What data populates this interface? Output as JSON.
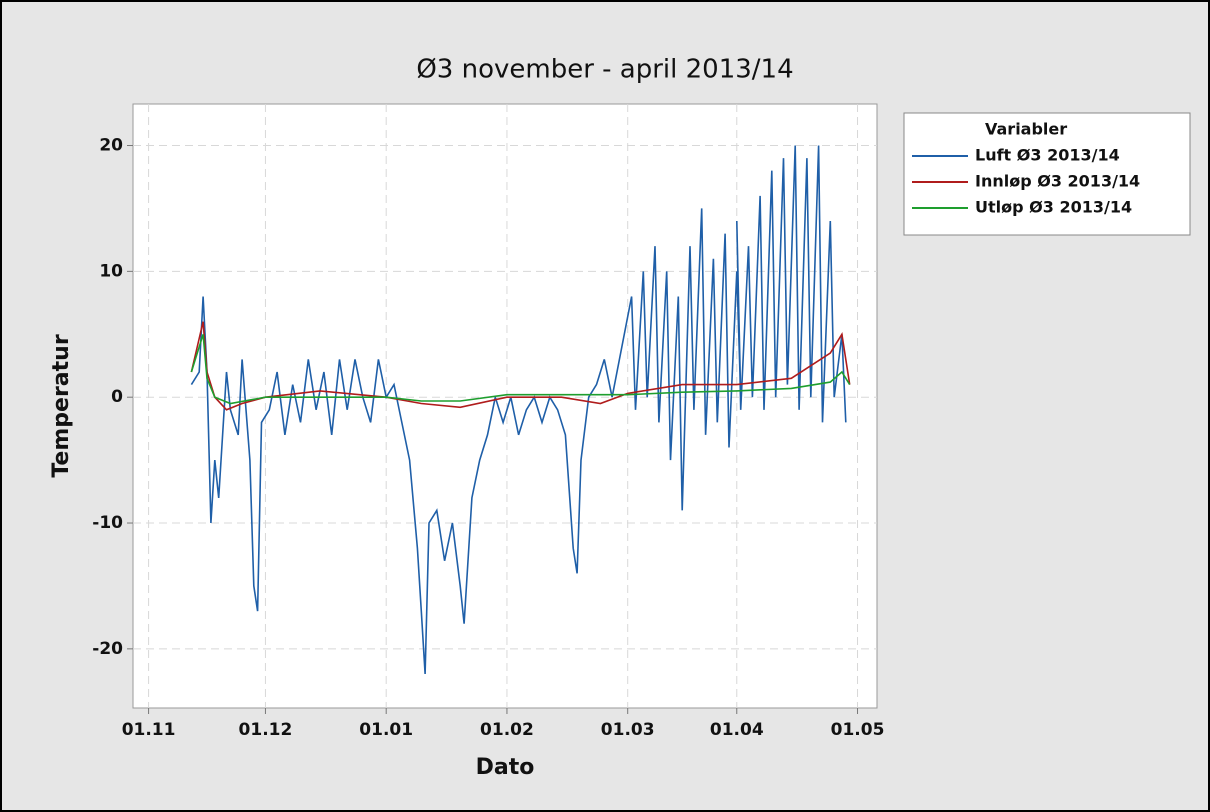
{
  "chart_data": {
    "type": "line",
    "title": "Ø3 november - april 2013/14",
    "x_label": "Dato",
    "y_label": "Temperatur",
    "legend_title": "Variabler",
    "legend": "right",
    "grid": true,
    "xlim": [
      "28.10",
      "06.05"
    ],
    "xticks": [
      "01.11",
      "01.12",
      "01.01",
      "01.02",
      "01.03",
      "01.04",
      "01.05"
    ],
    "ylim": [
      -24.7,
      23.3
    ],
    "yticks": [
      -20,
      -10,
      0,
      10,
      20
    ],
    "series": [
      {
        "name": "Luft Ø3 2013/14",
        "color": "#1f5fa8",
        "x": [
          "12.11",
          "14.11",
          "15.11",
          "16.11",
          "17.11",
          "18.11",
          "19.11",
          "21.11",
          "22.11",
          "24.11",
          "25.11",
          "27.11",
          "28.11",
          "29.11",
          "30.11",
          "02.12",
          "04.12",
          "06.12",
          "08.12",
          "10.12",
          "12.12",
          "14.12",
          "16.12",
          "18.12",
          "20.12",
          "22.12",
          "24.12",
          "26.12",
          "28.12",
          "30.12",
          "01.01",
          "03.01",
          "05.01",
          "07.01",
          "09.01",
          "10.01",
          "11.01",
          "12.01",
          "14.01",
          "16.01",
          "18.01",
          "20.01",
          "21.01",
          "23.01",
          "25.01",
          "27.01",
          "29.01",
          "31.01",
          "02.02",
          "04.02",
          "06.02",
          "08.02",
          "10.02",
          "12.02",
          "14.02",
          "16.02",
          "18.02",
          "19.02",
          "20.02",
          "22.02",
          "24.02",
          "26.02",
          "28.02",
          "02.03",
          "03.03",
          "05.03",
          "06.03",
          "08.03",
          "09.03",
          "11.03",
          "12.03",
          "14.03",
          "15.03",
          "17.03",
          "18.03",
          "20.03",
          "21.03",
          "23.03",
          "24.03",
          "26.03",
          "27.03",
          "29.03",
          "30.03",
          "01.04",
          "02.04",
          "04.04",
          "05.04",
          "07.04",
          "08.04",
          "10.04",
          "11.04",
          "13.04",
          "14.04",
          "16.04",
          "17.04",
          "19.04",
          "20.04",
          "22.04",
          "23.04",
          "25.04",
          "26.04",
          "28.04",
          "29.04"
        ],
        "values": [
          1,
          2,
          8,
          2,
          -10,
          -5,
          -8,
          2,
          -1,
          -3,
          3,
          -5,
          -15,
          -17,
          -2,
          -1,
          2,
          -3,
          1,
          -2,
          3,
          -1,
          2,
          -3,
          3,
          -1,
          3,
          0,
          -2,
          3,
          0,
          1,
          -2,
          -5,
          -12,
          -17,
          -22,
          -10,
          -9,
          -13,
          -10,
          -15,
          -18,
          -8,
          -5,
          -3,
          0,
          -2,
          0,
          -3,
          -1,
          0,
          -2,
          0,
          -1,
          -3,
          -12,
          -14,
          -5,
          0,
          1,
          3,
          0,
          8,
          -1,
          10,
          0,
          12,
          -2,
          10,
          -5,
          8,
          -9,
          12,
          -1,
          15,
          -3,
          11,
          -2,
          13,
          -4,
          10,
          0,
          14,
          -1,
          12,
          0,
          16,
          -1,
          18,
          0,
          19,
          1,
          20,
          -1,
          19,
          0,
          20,
          -2,
          14,
          0,
          5,
          -2
        ]
      },
      {
        "name": "Innløp Ø3 2013/14",
        "color": "#b01c1c",
        "x": [
          "12.11",
          "15.11",
          "16.11",
          "18.11",
          "21.11",
          "25.11",
          "01.12",
          "15.12",
          "01.01",
          "10.01",
          "20.01",
          "01.02",
          "15.02",
          "25.02",
          "01.03",
          "15.03",
          "01.04",
          "15.04",
          "20.04",
          "25.04",
          "28.04",
          "30.04"
        ],
        "values": [
          2,
          6,
          2,
          0,
          -1,
          -0.5,
          0,
          0.5,
          0,
          -0.5,
          -0.8,
          0,
          0,
          -0.5,
          0.3,
          1,
          1,
          1.5,
          2.5,
          3.5,
          5,
          1
        ]
      },
      {
        "name": "Utløp Ø3 2013/14",
        "color": "#1e9e2e",
        "x": [
          "12.11",
          "15.11",
          "16.11",
          "18.11",
          "22.11",
          "01.12",
          "15.12",
          "01.01",
          "10.01",
          "20.01",
          "01.02",
          "15.02",
          "01.03",
          "15.03",
          "01.04",
          "15.04",
          "25.04",
          "28.04",
          "30.04"
        ],
        "values": [
          2,
          5,
          1.5,
          0,
          -0.5,
          0,
          0,
          0,
          -0.3,
          -0.3,
          0.2,
          0.2,
          0.2,
          0.4,
          0.5,
          0.7,
          1.2,
          2,
          1
        ]
      }
    ]
  }
}
